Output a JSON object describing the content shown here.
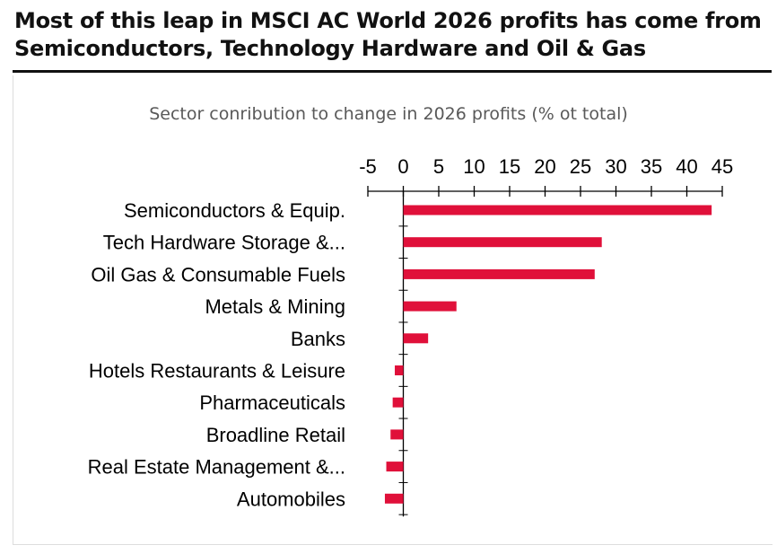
{
  "headline": {
    "line1": "Most of this leap in MSCI AC World 2026 profits has come from",
    "line2": "Semiconductors, Technology Hardware and Oil & Gas"
  },
  "chart_data": {
    "type": "bar",
    "orientation": "horizontal",
    "title": "Sector conribution to change in 2026 profits (% ot total)",
    "xlabel": "",
    "ylabel": "",
    "xlim": [
      -5,
      45
    ],
    "xticks": [
      -5,
      0,
      5,
      10,
      15,
      20,
      25,
      30,
      35,
      40,
      45
    ],
    "categories": [
      "Semiconductors & Equip.",
      "Tech Hardware Storage &...",
      "Oil Gas & Consumable Fuels",
      "Metals & Mining",
      "Banks",
      "Hotels Restaurants & Leisure",
      "Pharmaceuticals",
      "Broadline Retail",
      "Real Estate Management &...",
      "Automobiles"
    ],
    "values": [
      43.5,
      28,
      27,
      7.5,
      3.5,
      -1.2,
      -1.5,
      -1.8,
      -2.4,
      -2.6
    ],
    "color": "#e0103a",
    "grid": false,
    "legend": "none"
  }
}
